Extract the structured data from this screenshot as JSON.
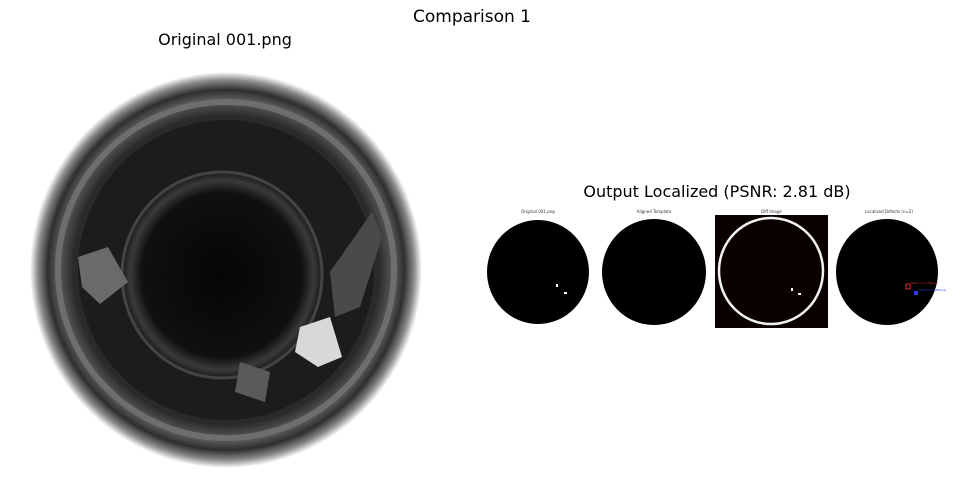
{
  "figure": {
    "title": "Comparison 1"
  },
  "left": {
    "title": "Original 001.png"
  },
  "right": {
    "title": "Output Localized (PSNR: 2.81 dB)",
    "panels": [
      {
        "title": "Original 001.png"
      },
      {
        "title": "Aligned Template"
      },
      {
        "title": "Diff Image"
      },
      {
        "title": "Localized Defects (n=2)"
      }
    ],
    "defect_labels": [
      "Defect 1 (confidence)",
      "Defect 2 (confidence)"
    ]
  },
  "colors": {
    "background": "#ffffff",
    "circle": "#000000",
    "diff_background": "#0a0000",
    "defect_red": "#e03030",
    "defect_blue": "#2b3bff"
  }
}
